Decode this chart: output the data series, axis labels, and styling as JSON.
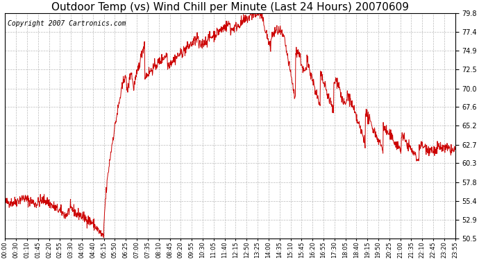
{
  "title": "Outdoor Temp (vs) Wind Chill per Minute (Last 24 Hours) 20070609",
  "copyright": "Copyright 2007 Cartronics.com",
  "line_color": "#cc0000",
  "bg_color": "#ffffff",
  "grid_color": "#bbbbbb",
  "ylim": [
    50.5,
    79.8
  ],
  "yticks": [
    50.5,
    52.9,
    55.4,
    57.8,
    60.3,
    62.7,
    65.2,
    67.6,
    70.0,
    72.5,
    74.9,
    77.4,
    79.8
  ],
  "xtick_labels": [
    "00:00",
    "00:30",
    "01:10",
    "01:45",
    "02:20",
    "02:55",
    "03:30",
    "04:05",
    "04:40",
    "05:15",
    "05:50",
    "06:25",
    "07:00",
    "07:35",
    "08:10",
    "08:45",
    "09:20",
    "09:55",
    "10:30",
    "11:05",
    "11:40",
    "12:15",
    "12:50",
    "13:25",
    "14:00",
    "14:35",
    "15:10",
    "15:45",
    "16:20",
    "16:55",
    "17:30",
    "18:05",
    "18:40",
    "19:15",
    "19:50",
    "20:25",
    "21:00",
    "21:35",
    "22:10",
    "22:45",
    "23:20",
    "23:55"
  ],
  "title_fontsize": 11,
  "copyright_fontsize": 7
}
